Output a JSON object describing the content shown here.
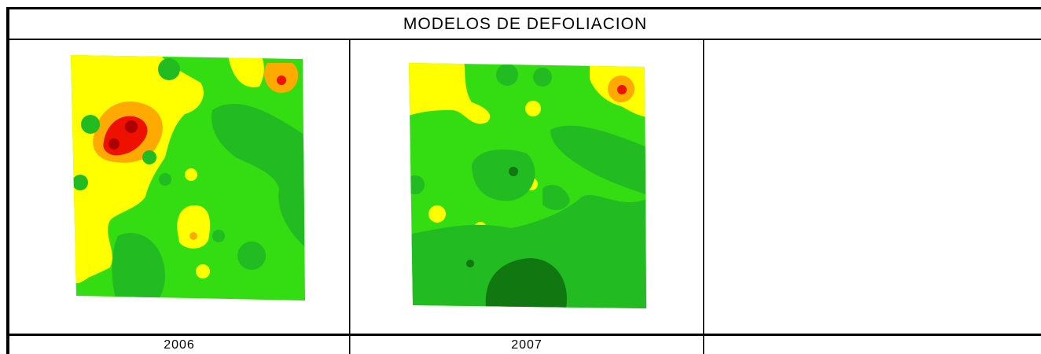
{
  "header": {
    "title": "MODELOS DE DEFOLIACION"
  },
  "table": {
    "captions": [
      "2006",
      "2007"
    ]
  }
}
